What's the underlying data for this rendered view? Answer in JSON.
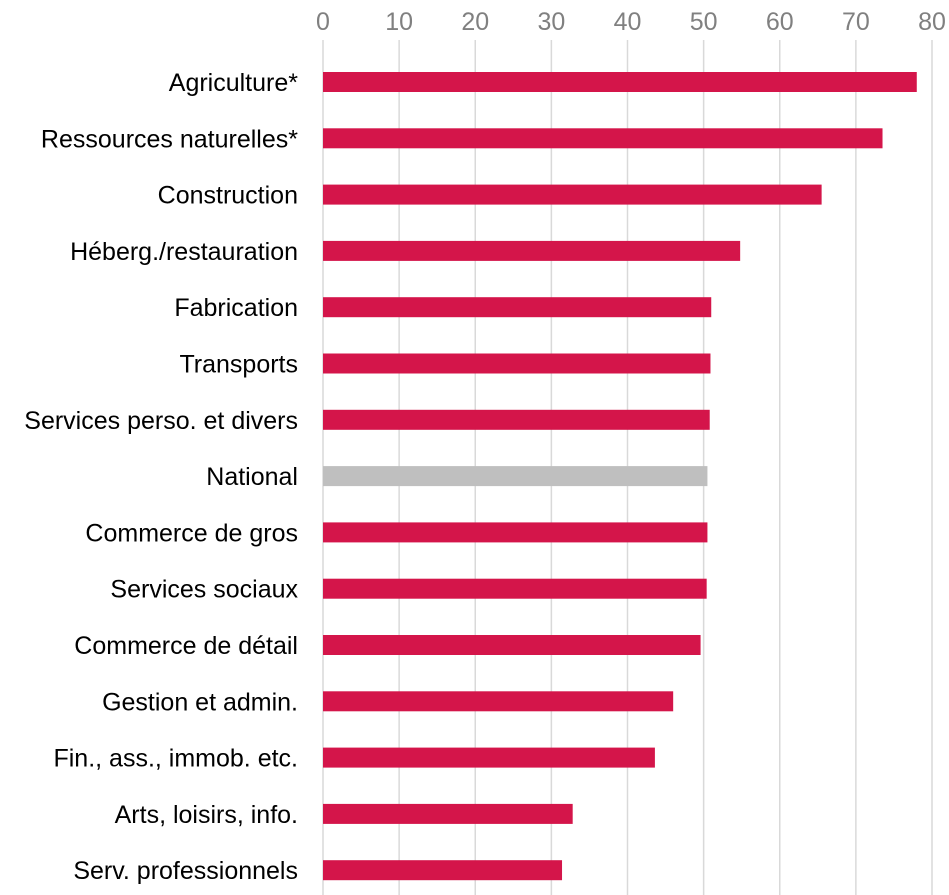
{
  "chart_data": {
    "type": "bar",
    "orientation": "horizontal",
    "title": "",
    "xlabel": "",
    "ylabel": "",
    "xlim": [
      0,
      80
    ],
    "ticks": [
      "0",
      "10",
      "20",
      "30",
      "40",
      "50",
      "60",
      "70",
      "80"
    ],
    "tick_values": [
      0,
      10,
      20,
      30,
      40,
      50,
      60,
      70,
      80
    ],
    "axis_position": "top",
    "grid": true,
    "legend": "none",
    "categories": [
      "Agriculture*",
      "Ressources naturelles*",
      "Construction",
      "Héberg./restauration",
      "Fabrication",
      "Transports",
      "Services perso. et divers",
      "National",
      "Commerce de gros",
      "Services sociaux",
      "Commerce de détail",
      "Gestion et admin.",
      "Fin., ass., immob. etc.",
      "Arts, loisirs, info.",
      "Serv. professionnels"
    ],
    "values": [
      78,
      73.5,
      65.5,
      54.8,
      51,
      50.9,
      50.8,
      50.5,
      50.5,
      50.4,
      49.6,
      46,
      43.6,
      32.8,
      31.4
    ],
    "highlight_category": "National",
    "colors": {
      "bar": "#d4154a",
      "highlight": "#bfbfbf",
      "grid": "#d9d9d9",
      "tick_text": "#808080",
      "label_text": "#000000"
    }
  }
}
